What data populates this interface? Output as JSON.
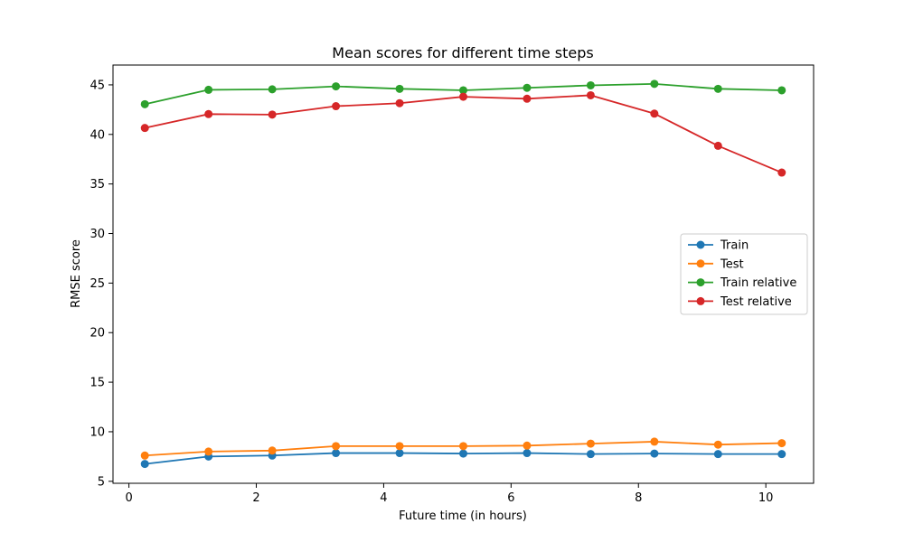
{
  "chart_data": {
    "type": "line",
    "title": "Mean scores for different time steps",
    "xlabel": "Future time (in hours)",
    "ylabel": "RMSE score",
    "xlim": [
      -0.25,
      10.75
    ],
    "ylim": [
      4.8,
      47.0
    ],
    "xticks": [
      0,
      2,
      4,
      6,
      8,
      10
    ],
    "yticks": [
      5,
      10,
      15,
      20,
      25,
      30,
      35,
      40,
      45
    ],
    "x": [
      0.25,
      1.25,
      2.25,
      3.25,
      4.25,
      5.25,
      6.25,
      7.25,
      8.25,
      9.25,
      10.25
    ],
    "series": [
      {
        "name": "Train",
        "color": "#1f77b4",
        "values": [
          6.75,
          7.5,
          7.6,
          7.85,
          7.85,
          7.8,
          7.85,
          7.75,
          7.8,
          7.75,
          7.75
        ]
      },
      {
        "name": "Test",
        "color": "#ff7f0e",
        "values": [
          7.6,
          8.0,
          8.1,
          8.55,
          8.55,
          8.55,
          8.6,
          8.8,
          9.0,
          8.7,
          8.85
        ]
      },
      {
        "name": "Train relative",
        "color": "#2ca02c",
        "values": [
          43.05,
          44.5,
          44.55,
          44.85,
          44.6,
          44.45,
          44.7,
          44.95,
          45.1,
          44.6,
          44.45
        ]
      },
      {
        "name": "Test relative",
        "color": "#d62728",
        "values": [
          40.65,
          42.05,
          42.0,
          42.85,
          43.15,
          43.8,
          43.6,
          43.95,
          42.1,
          38.85,
          36.15
        ]
      }
    ],
    "legend_position": "center-right",
    "grid": false
  }
}
